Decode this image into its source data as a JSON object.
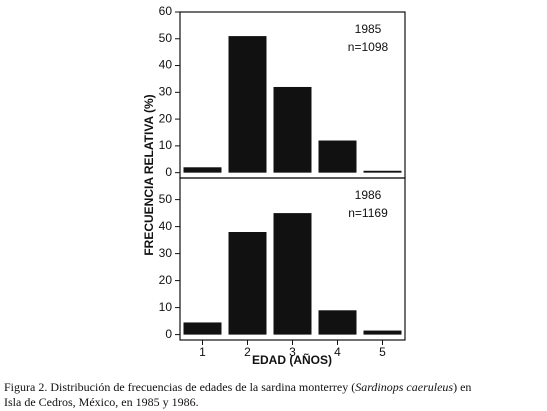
{
  "chart_data": [
    {
      "type": "bar",
      "label": "1985",
      "n_label": "n=1098",
      "values": [
        2,
        51,
        32,
        12,
        0.7
      ],
      "color": "#111111",
      "ylim": [
        -2,
        60
      ],
      "yticks": [
        0,
        10,
        20,
        30,
        40,
        50,
        60
      ]
    },
    {
      "type": "bar",
      "label": "1986",
      "n_label": "n=1169",
      "categories": [
        "1",
        "2",
        "3",
        "4",
        "5"
      ],
      "values": [
        4.5,
        38,
        45,
        9,
        1.5
      ],
      "color": "#111111",
      "ylim": [
        -2,
        58
      ],
      "yticks": [
        0,
        10,
        20,
        30,
        40,
        50
      ]
    }
  ],
  "y_label": "FRECUENCIA RELATIVA (%)",
  "x_label": "EDAD (AÑOS)",
  "caption": [
    "Figura 2. Distribución de frecuencias de edades de la sardina monterrey (",
    "Sardinops caeruleus",
    ") en",
    "Isla de Cedros, México, en 1985 y 1986."
  ]
}
